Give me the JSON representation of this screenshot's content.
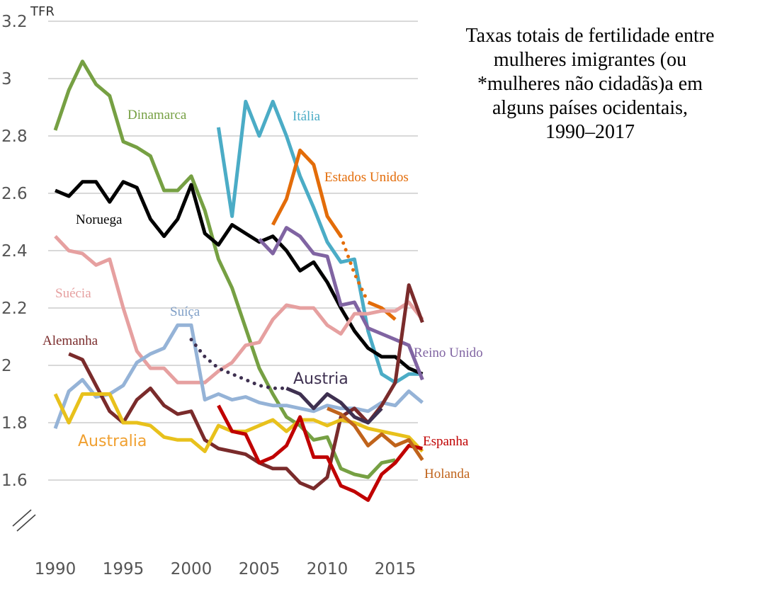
{
  "title": "Taxas totais de fertilidade entre mulheres imigrantes (ou *mulheres não cidadãs)a em alguns países ocidentais, 1990–2017",
  "title_lines": [
    "Taxas totais de fertilidade entre",
    "mulheres imigrantes (ou",
    "*mulheres não cidadãs)a em",
    "alguns países ocidentais,",
    "1990–2017"
  ],
  "chart_data": {
    "type": "line",
    "ylabel": "TFR",
    "xlim": [
      1990,
      2017
    ],
    "ylim": [
      1.6,
      3.2
    ],
    "x_ticks": [
      1990,
      1995,
      2000,
      2005,
      2010,
      2015
    ],
    "y_ticks": [
      1.6,
      1.8,
      2,
      2.2,
      2.4,
      2.6,
      2.8,
      3,
      3.2
    ],
    "y_tick_labels": [
      "1.6",
      "1.8",
      "2",
      "2.2",
      "2.4",
      "2.6",
      "2.8",
      "3",
      "3.2"
    ],
    "grid": "horizontal",
    "axis_break": true,
    "series": [
      {
        "name": "Dinamarca",
        "color": "#76a043",
        "x": [
          1990,
          1991,
          1992,
          1993,
          1994,
          1995,
          1996,
          1997,
          1998,
          1999,
          2000,
          2001,
          2002,
          2003,
          2004,
          2005,
          2006,
          2007,
          2008,
          2009,
          2010,
          2011,
          2012,
          2013,
          2014,
          2015
        ],
        "y": [
          2.82,
          2.96,
          3.06,
          2.98,
          2.94,
          2.78,
          2.76,
          2.73,
          2.61,
          2.61,
          2.66,
          2.54,
          2.37,
          2.27,
          2.13,
          1.99,
          1.9,
          1.82,
          1.79,
          1.74,
          1.75,
          1.64,
          1.62,
          1.61,
          1.66,
          1.67
        ]
      },
      {
        "name": "Itália",
        "color": "#4bacc6",
        "x": [
          2002,
          2003,
          2004,
          2005,
          2006,
          2007,
          2008,
          2009,
          2010,
          2011,
          2012,
          2013,
          2014,
          2015,
          2016,
          2017
        ],
        "y": [
          2.83,
          2.52,
          2.92,
          2.8,
          2.92,
          2.8,
          2.66,
          2.55,
          2.43,
          2.36,
          2.37,
          2.12,
          1.97,
          1.94,
          1.97,
          1.97
        ]
      },
      {
        "name": "Estados Unidos",
        "color": "#e36c09",
        "x": [
          2006,
          2007,
          2008,
          2009,
          2010,
          2011
        ],
        "y": [
          2.49,
          2.58,
          2.75,
          2.7,
          2.52,
          2.45
        ],
        "dotted_x": [
          2011,
          2012,
          2013
        ],
        "dotted_y": [
          2.45,
          2.32,
          2.22
        ],
        "x2": [
          2013,
          2014,
          2015
        ],
        "y2": [
          2.22,
          2.2,
          2.16
        ]
      },
      {
        "name": "Noruega",
        "color": "#000000",
        "x": [
          1990,
          1991,
          1992,
          1993,
          1994,
          1995,
          1996,
          1997,
          1998,
          1999,
          2000,
          2001,
          2002,
          2003,
          2004,
          2005,
          2006,
          2007,
          2008,
          2009,
          2010,
          2011,
          2012,
          2013,
          2014,
          2015,
          2016,
          2017
        ],
        "y": [
          2.61,
          2.59,
          2.64,
          2.64,
          2.57,
          2.64,
          2.62,
          2.51,
          2.45,
          2.51,
          2.63,
          2.46,
          2.42,
          2.49,
          2.46,
          2.43,
          2.45,
          2.4,
          2.33,
          2.36,
          2.29,
          2.2,
          2.12,
          2.06,
          2.03,
          2.03,
          1.99,
          1.97
        ]
      },
      {
        "name": "Reino Unido",
        "color": "#8064a2",
        "x": [
          2005,
          2006,
          2007,
          2008,
          2009,
          2010,
          2011,
          2012,
          2013,
          2014,
          2015,
          2016,
          2017
        ],
        "y": [
          2.44,
          2.39,
          2.48,
          2.45,
          2.39,
          2.38,
          2.21,
          2.22,
          2.13,
          2.11,
          2.09,
          2.07,
          1.95
        ]
      },
      {
        "name": "Suécia",
        "color": "#e6a0a0",
        "x": [
          1990,
          1991,
          1992,
          1993,
          1994,
          1995,
          1996,
          1997,
          1998,
          1999,
          2000,
          2001,
          2002,
          2003,
          2004,
          2005,
          2006,
          2007,
          2008,
          2009,
          2010,
          2011,
          2012,
          2013,
          2014,
          2015,
          2016,
          2017
        ],
        "y": [
          2.45,
          2.4,
          2.39,
          2.35,
          2.37,
          2.2,
          2.05,
          1.99,
          1.99,
          1.94,
          1.94,
          1.94,
          1.98,
          2.01,
          2.07,
          2.08,
          2.16,
          2.21,
          2.2,
          2.2,
          2.14,
          2.11,
          2.18,
          2.18,
          2.19,
          2.19,
          2.22,
          2.16
        ]
      },
      {
        "name": "Suíça",
        "color": "#95b3d7",
        "x": [
          1990,
          1991,
          1992,
          1993,
          1994,
          1995,
          1996,
          1997,
          1998,
          1999,
          2000,
          2001,
          2002,
          2003,
          2004,
          2005,
          2006,
          2007,
          2008,
          2009,
          2010,
          2011,
          2012,
          2013,
          2014,
          2015,
          2016,
          2017
        ],
        "y": [
          1.78,
          1.91,
          1.95,
          1.89,
          1.9,
          1.93,
          2.01,
          2.04,
          2.06,
          2.14,
          2.14,
          1.88,
          1.9,
          1.88,
          1.89,
          1.87,
          1.86,
          1.86,
          1.85,
          1.84,
          1.86,
          1.85,
          1.85,
          1.84,
          1.87,
          1.86,
          1.91,
          1.87
        ]
      },
      {
        "name": "Alemanha",
        "color": "#7a2b2b",
        "x": [
          1991,
          1992,
          1993,
          1994,
          1995,
          1996,
          1997,
          1998,
          1999,
          2000,
          2001,
          2002,
          2003,
          2004,
          2005,
          2006,
          2007,
          2008,
          2009,
          2010,
          2011,
          2012,
          2013,
          2014,
          2015,
          2016,
          2017
        ],
        "y": [
          2.04,
          2.02,
          1.93,
          1.84,
          1.8,
          1.88,
          1.92,
          1.86,
          1.83,
          1.84,
          1.74,
          1.71,
          1.7,
          1.69,
          1.66,
          1.64,
          1.64,
          1.59,
          1.57,
          1.61,
          1.82,
          1.85,
          1.8,
          1.86,
          1.94,
          2.28,
          2.15
        ]
      },
      {
        "name": "Austria",
        "color": "#3e3050",
        "x": [
          2007,
          2008,
          2009,
          2010,
          2011,
          2012,
          2013,
          2014
        ],
        "y": [
          1.92,
          1.9,
          1.85,
          1.9,
          1.87,
          1.82,
          1.8,
          1.85
        ],
        "dotted_x": [
          2000,
          2001,
          2002,
          2003,
          2004,
          2005,
          2006,
          2007
        ],
        "dotted_y": [
          2.09,
          2.03,
          1.99,
          1.97,
          1.95,
          1.93,
          1.92,
          1.92
        ]
      },
      {
        "name": "Australia",
        "color": "#e8c11c",
        "x": [
          1990,
          1991,
          1992,
          1993,
          1994,
          1995,
          1996,
          1997,
          1998,
          1999,
          2000,
          2001,
          2002,
          2003,
          2004,
          2005,
          2006,
          2007,
          2008,
          2009,
          2010,
          2011,
          2012,
          2013,
          2014,
          2015,
          2016,
          2017
        ],
        "y": [
          1.9,
          1.8,
          1.9,
          1.9,
          1.9,
          1.8,
          1.8,
          1.79,
          1.75,
          1.74,
          1.74,
          1.7,
          1.79,
          1.77,
          1.77,
          1.79,
          1.81,
          1.77,
          1.81,
          1.81,
          1.79,
          1.81,
          1.8,
          1.78,
          1.77,
          1.76,
          1.75,
          1.7
        ]
      },
      {
        "name": "Espanha",
        "color": "#c00000",
        "x": [
          2002,
          2003,
          2004,
          2005,
          2006,
          2007,
          2008,
          2009,
          2010,
          2011,
          2012,
          2013,
          2014,
          2015,
          2016,
          2017
        ],
        "y": [
          1.86,
          1.77,
          1.76,
          1.66,
          1.68,
          1.72,
          1.82,
          1.68,
          1.68,
          1.58,
          1.56,
          1.53,
          1.62,
          1.66,
          1.72,
          1.71
        ]
      },
      {
        "name": "Holanda",
        "color": "#c0631b",
        "x": [
          2010,
          2011,
          2012,
          2013,
          2014,
          2015,
          2016,
          2017
        ],
        "y": [
          1.85,
          1.83,
          1.79,
          1.72,
          1.76,
          1.72,
          1.74,
          1.67
        ]
      }
    ]
  },
  "labels": {
    "dinamarca": "Dinamarca",
    "italia": "Itália",
    "estados_unidos": "Estados Unidos",
    "noruega": "Noruega",
    "reino_unido": "Reino Unido",
    "suecia": "Suécia",
    "suica": "Suíça",
    "alemanha": "Alemanha",
    "austria": "Austria",
    "australia": "Australia",
    "espanha": "Espanha",
    "holanda": "Holanda"
  }
}
